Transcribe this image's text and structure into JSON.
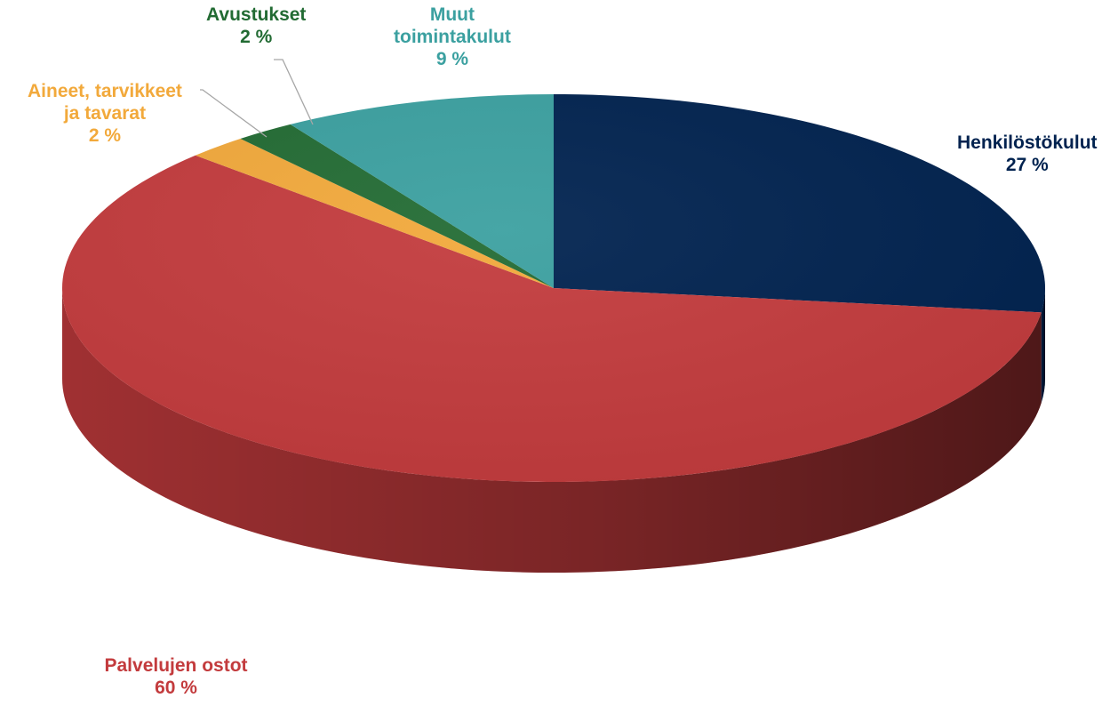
{
  "chart_data": {
    "type": "pie",
    "title": "",
    "unit": "%",
    "slices": [
      {
        "name": "Henkilöstökulut",
        "value": 27,
        "label_lines": [
          "Henkilöstökulut"
        ],
        "value_label": "27 %",
        "color": "#00224f"
      },
      {
        "name": "Palvelujen ostot",
        "value": 60,
        "label_lines": [
          "Palvelujen ostot"
        ],
        "value_label": "60 %",
        "color": "#c33b3d"
      },
      {
        "name": "Aineet, tarvikkeet ja tavarat",
        "value": 2,
        "label_lines": [
          "Aineet, tarvikkeet",
          "ja tavarat"
        ],
        "value_label": "2 %",
        "color": "#f2a93b"
      },
      {
        "name": "Avustukset",
        "value": 2,
        "label_lines": [
          "Avustukset"
        ],
        "value_label": "2 %",
        "color": "#226b33"
      },
      {
        "name": "Muut toimintakulut",
        "value": 9,
        "label_lines": [
          "Muut",
          "toimintakulut"
        ],
        "value_label": "9 %",
        "color": "#3ba0a0"
      }
    ],
    "style": "3d-pie",
    "legend": "none"
  }
}
